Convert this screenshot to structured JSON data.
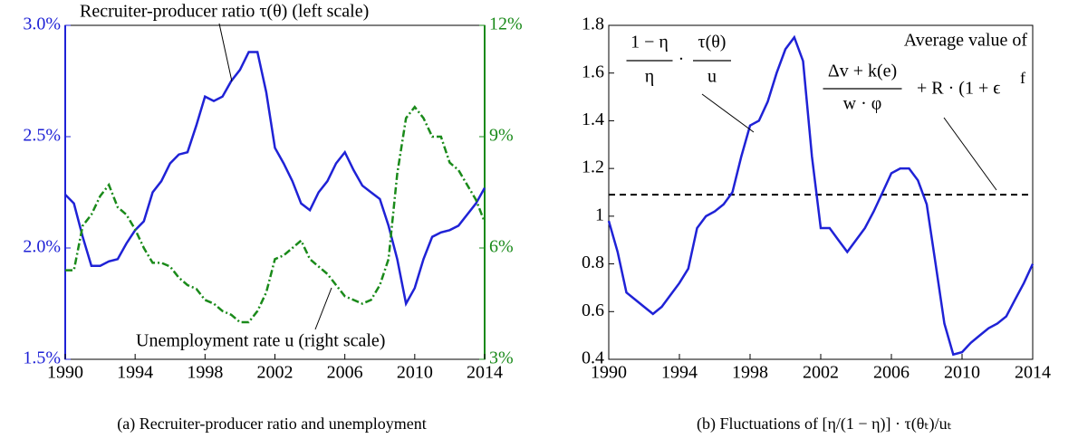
{
  "chart_data": [
    {
      "type": "line",
      "annotations": [
        "Recruiter-producer ratio τ(θ) (left scale)",
        "Unemployment rate u (right scale)"
      ],
      "caption": "(a) Recruiter-producer ratio and unemployment",
      "x": [
        1990,
        1990.5,
        1991,
        1991.5,
        1992,
        1992.5,
        1993,
        1993.5,
        1994,
        1994.5,
        1995,
        1995.5,
        1996,
        1996.5,
        1997,
        1997.5,
        1998,
        1998.5,
        1999,
        1999.5,
        2000,
        2000.5,
        2001,
        2001.5,
        2002,
        2002.5,
        2003,
        2003.5,
        2004,
        2004.5,
        2005,
        2005.5,
        2006,
        2006.5,
        2007,
        2007.5,
        2008,
        2008.5,
        2009,
        2009.5,
        2010,
        2010.5,
        2011,
        2011.5,
        2012,
        2012.5,
        2013,
        2013.5,
        2014
      ],
      "xlim": [
        1990,
        2014
      ],
      "xticks": [
        1990,
        1994,
        1998,
        2002,
        2006,
        2010,
        2014
      ],
      "ylim": [
        1.5,
        3.0
      ],
      "yticks": [
        {
          "value": 1.5,
          "label": "1.5%"
        },
        {
          "value": 2.0,
          "label": "2.0%"
        },
        {
          "value": 2.5,
          "label": "2.5%"
        },
        {
          "value": 3.0,
          "label": "3.0%"
        }
      ],
      "y2lim": [
        3,
        12
      ],
      "y2ticks": [
        {
          "value": 3,
          "label": "3%"
        },
        {
          "value": 6,
          "label": "6%"
        },
        {
          "value": 9,
          "label": "9%"
        },
        {
          "value": 12,
          "label": "12%"
        }
      ],
      "y_color": "#1f22d6",
      "y2_color": "#1a8a1a",
      "series": [
        {
          "color": "#1f22d6",
          "style": "solid",
          "axis": "y",
          "values": [
            2.24,
            2.2,
            2.05,
            1.92,
            1.92,
            1.94,
            1.95,
            2.02,
            2.08,
            2.12,
            2.25,
            2.3,
            2.38,
            2.42,
            2.43,
            2.55,
            2.68,
            2.66,
            2.68,
            2.75,
            2.8,
            2.88,
            2.88,
            2.7,
            2.45,
            2.38,
            2.3,
            2.2,
            2.17,
            2.25,
            2.3,
            2.38,
            2.43,
            2.35,
            2.28,
            2.25,
            2.22,
            2.1,
            1.95,
            1.75,
            1.82,
            1.95,
            2.05,
            2.07,
            2.08,
            2.1,
            2.15,
            2.2,
            2.27
          ]
        },
        {
          "color": "#1a8a1a",
          "style": "dashdot",
          "axis": "y2",
          "values": [
            5.4,
            5.4,
            6.6,
            6.9,
            7.4,
            7.7,
            7.1,
            6.9,
            6.5,
            6.0,
            5.6,
            5.6,
            5.5,
            5.2,
            5.0,
            4.9,
            4.6,
            4.5,
            4.3,
            4.2,
            4.0,
            4.0,
            4.3,
            4.8,
            5.7,
            5.8,
            6.0,
            6.2,
            5.7,
            5.5,
            5.3,
            5.0,
            4.7,
            4.6,
            4.5,
            4.6,
            5.0,
            5.7,
            8.0,
            9.5,
            9.8,
            9.5,
            9.0,
            9.0,
            8.3,
            8.1,
            7.7,
            7.3,
            6.7
          ]
        }
      ]
    },
    {
      "type": "line",
      "caption": "(b) Fluctuations of [η/(1 − η)] · τ(θₜ)/uₜ",
      "formula_1": {
        "fractions": [
          {
            "num": "1 − η",
            "den": "η"
          },
          {
            "num": "τ(θ)",
            "den": "u"
          }
        ],
        "operator": "·"
      },
      "formula_2": {
        "label": "Average value of",
        "num": "Δv + k(e)",
        "den": "w · φ",
        "tail": "+ R · (1 + ϵ",
        "tail_sup": "f"
      },
      "average_line": {
        "value": 1.09,
        "color": "#000000"
      },
      "x": [
        1990,
        1990.5,
        1991,
        1991.5,
        1992,
        1992.5,
        1993,
        1993.5,
        1994,
        1994.5,
        1995,
        1995.5,
        1996,
        1996.5,
        1997,
        1997.5,
        1998,
        1998.5,
        1999,
        1999.5,
        2000,
        2000.5,
        2001,
        2001.5,
        2002,
        2002.5,
        2003,
        2003.5,
        2004,
        2004.5,
        2005,
        2005.5,
        2006,
        2006.5,
        2007,
        2007.5,
        2008,
        2008.5,
        2009,
        2009.5,
        2010,
        2010.5,
        2011,
        2011.5,
        2012,
        2012.5,
        2013,
        2013.5,
        2014
      ],
      "xlim": [
        1990,
        2014
      ],
      "xticks": [
        1990,
        1994,
        1998,
        2002,
        2006,
        2010,
        2014
      ],
      "ylim": [
        0.4,
        1.8
      ],
      "yticks": [
        0.4,
        0.6,
        0.8,
        1,
        1.2,
        1.4,
        1.6,
        1.8
      ],
      "series": [
        {
          "color": "#1f22d6",
          "style": "solid",
          "axis": "y",
          "values": [
            0.98,
            0.85,
            0.68,
            0.65,
            0.62,
            0.59,
            0.62,
            0.67,
            0.72,
            0.78,
            0.95,
            1.0,
            1.02,
            1.05,
            1.1,
            1.25,
            1.38,
            1.4,
            1.48,
            1.6,
            1.7,
            1.75,
            1.65,
            1.25,
            0.95,
            0.95,
            0.9,
            0.85,
            0.9,
            0.95,
            1.02,
            1.1,
            1.18,
            1.2,
            1.2,
            1.15,
            1.05,
            0.8,
            0.55,
            0.42,
            0.43,
            0.47,
            0.5,
            0.53,
            0.55,
            0.58,
            0.65,
            0.72,
            0.8
          ]
        }
      ]
    }
  ]
}
